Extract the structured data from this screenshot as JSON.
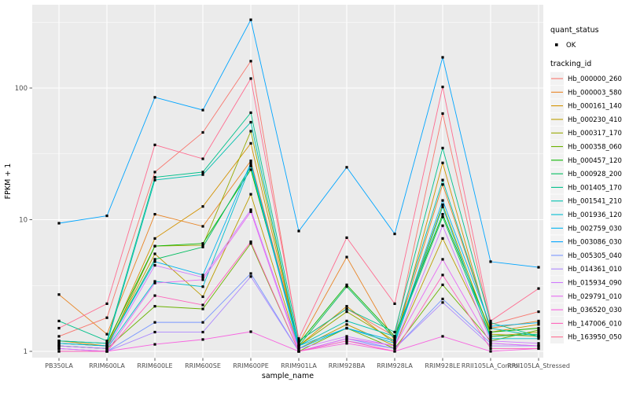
{
  "page": {
    "background": "#FFFFFF"
  },
  "chart_data": {
    "type": "line",
    "title": "",
    "xlabel": "sample_name",
    "ylabel": "FPKM + 1",
    "y_scale": "log10",
    "y_ticks": [
      1,
      10,
      100
    ],
    "y_minor_ticks": [
      3.162,
      31.62,
      316.2
    ],
    "ylim": [
      0.93,
      437
    ],
    "grid": "on",
    "legend_position": "right",
    "panel_background": "#EBEBEB",
    "gridline_color": "#FFFFFF",
    "tick_label_color": "#4D4D4D",
    "axis_title_color": "#000000",
    "point_color": "#000000",
    "categories": [
      "PB350LA",
      "RRIM600LA",
      "RRIM600LE",
      "RRIM600SE",
      "RRIM600PE",
      "RRIM901LA",
      "RRIM928BA",
      "RRIM928LA",
      "RRIM928LE",
      "RRII105LA_Control",
      "RRII105LA_Stressed"
    ],
    "series": [
      {
        "name": "Hb_000000_260",
        "color": "#F8766D",
        "values": [
          1.3,
          1.8,
          23,
          46,
          160,
          1.2,
          2.1,
          1.3,
          64,
          1.6,
          2.0
        ]
      },
      {
        "name": "Hb_000003_580",
        "color": "#E88526",
        "values": [
          2.7,
          1.35,
          11,
          8.9,
          28,
          1.15,
          5.2,
          1.2,
          18.5,
          1.5,
          1.7
        ]
      },
      {
        "name": "Hb_000161_140",
        "color": "#D39200",
        "values": [
          1.2,
          1.1,
          7.2,
          12.6,
          38,
          1.1,
          2.2,
          1.15,
          27,
          1.4,
          1.6
        ]
      },
      {
        "name": "Hb_000230_410",
        "color": "#BB9D00",
        "values": [
          1.15,
          1.1,
          5.5,
          2.6,
          15.6,
          1.05,
          1.6,
          1.1,
          7.2,
          1.3,
          1.4
        ]
      },
      {
        "name": "Hb_000317_170",
        "color": "#97A900",
        "values": [
          1.1,
          1.05,
          6.3,
          6.4,
          47,
          1.1,
          2.0,
          1.2,
          13,
          1.35,
          1.3
        ]
      },
      {
        "name": "Hb_000358_060",
        "color": "#6BB100",
        "values": [
          1.1,
          1.05,
          2.2,
          2.1,
          6.6,
          1.0,
          1.5,
          1.05,
          3.2,
          1.2,
          1.45
        ]
      },
      {
        "name": "Hb_000457_120",
        "color": "#0CB702",
        "values": [
          1.2,
          1.15,
          6.3,
          6.6,
          24,
          1.15,
          3.2,
          1.3,
          11,
          1.4,
          1.5
        ]
      },
      {
        "name": "Hb_000928_200",
        "color": "#00BD5F",
        "values": [
          1.15,
          1.1,
          5.0,
          6.2,
          25.5,
          1.1,
          3.1,
          1.25,
          10.5,
          1.3,
          1.35
        ]
      },
      {
        "name": "Hb_001405_170",
        "color": "#00C08B",
        "values": [
          1.7,
          1.2,
          21,
          23,
          65,
          1.2,
          2.1,
          1.4,
          35,
          1.65,
          1.3
        ]
      },
      {
        "name": "Hb_001541_210",
        "color": "#00C0AF",
        "values": [
          1.2,
          1.15,
          20,
          22,
          55,
          1.1,
          1.7,
          1.3,
          20,
          1.5,
          1.3
        ]
      },
      {
        "name": "Hb_001936_120",
        "color": "#00BDD0",
        "values": [
          1.1,
          1.05,
          3.4,
          3.1,
          26,
          1.05,
          1.5,
          1.15,
          12.5,
          1.25,
          1.25
        ]
      },
      {
        "name": "Hb_002759_030",
        "color": "#00B4EF",
        "values": [
          1.15,
          1.1,
          4.8,
          3.8,
          27,
          1.1,
          1.5,
          1.2,
          14,
          1.55,
          1.65
        ]
      },
      {
        "name": "Hb_003086_030",
        "color": "#00A5FF",
        "values": [
          9.4,
          10.7,
          85,
          68,
          330,
          8.2,
          25,
          7.8,
          171,
          4.8,
          4.35
        ]
      },
      {
        "name": "Hb_005305_040",
        "color": "#7997FF",
        "values": [
          1.05,
          1.0,
          1.66,
          1.66,
          3.9,
          1.0,
          1.25,
          1.05,
          2.5,
          1.15,
          1.1
        ]
      },
      {
        "name": "Hb_014361_010",
        "color": "#AC88FF",
        "values": [
          1.05,
          1.0,
          1.4,
          1.4,
          3.7,
          1.0,
          1.2,
          1.05,
          2.35,
          1.1,
          1.1
        ]
      },
      {
        "name": "Hb_015934_090",
        "color": "#CF78FF",
        "values": [
          1.1,
          1.05,
          4.5,
          3.65,
          11.9,
          1.05,
          1.3,
          1.1,
          9.0,
          1.2,
          1.15
        ]
      },
      {
        "name": "Hb_029791_010",
        "color": "#E76BF3",
        "values": [
          1.05,
          1.0,
          3.3,
          3.5,
          11.5,
          1.0,
          1.25,
          1.1,
          5.0,
          1.15,
          1.1
        ]
      },
      {
        "name": "Hb_036520_030",
        "color": "#F763E0",
        "values": [
          1.0,
          1.0,
          1.13,
          1.23,
          1.41,
          1.0,
          1.15,
          1.0,
          1.3,
          1.0,
          1.05
        ]
      },
      {
        "name": "Hb_147006_010",
        "color": "#FF62BC",
        "values": [
          1.0,
          1.0,
          2.65,
          2.25,
          6.8,
          1.0,
          1.2,
          1.0,
          3.8,
          1.05,
          1.05
        ]
      },
      {
        "name": "Hb_163950_050",
        "color": "#FF6C90",
        "values": [
          1.5,
          2.3,
          37,
          29,
          118,
          1.25,
          7.3,
          2.3,
          102,
          1.7,
          3.0
        ]
      }
    ]
  },
  "legend": {
    "quant_status": {
      "title": "quant_status",
      "items": [
        {
          "label": "OK"
        }
      ]
    },
    "tracking": {
      "title": "tracking_id"
    },
    "key_background": "#F2F2F2",
    "text_color": "#000000"
  }
}
